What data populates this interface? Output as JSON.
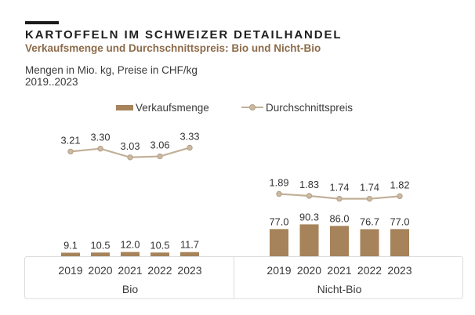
{
  "header": {
    "title": "KARTOFFELN IM SCHWEIZER DETAILHANDEL",
    "subtitle": "Verkaufsmenge und Durchschnittspreis: Bio und Nicht-Bio",
    "note_line1": "Mengen in Mio. kg, Preise in CHF/kg",
    "note_line2": "2019..2023"
  },
  "legend": {
    "bar_label": "Verkaufsmenge",
    "line_label": "Durchschnittspreis"
  },
  "colors": {
    "title": "#1e1e1e",
    "subtitle": "#8d6b4a",
    "text": "#3a3a3a",
    "bar": "#a6835a",
    "line": "#c2b098",
    "dot_fill": "#cbb9a2",
    "dot_stroke": "#b2a088",
    "axis_border": "#dcdcdc"
  },
  "chart_data": {
    "type": "bar",
    "note": "grouped bar chart with line overlay on secondary axis",
    "title": "Kartoffeln im Schweizer Detailhandel",
    "subtitle": "Verkaufsmenge und Durchschnittspreis: Bio und Nicht-Bio",
    "units": {
      "bars": "Mio. kg",
      "line": "CHF/kg"
    },
    "categories": [
      "2019",
      "2020",
      "2021",
      "2022",
      "2023"
    ],
    "series": [
      {
        "name": "Verkaufsmenge",
        "render": "bar"
      },
      {
        "name": "Durchschnittspreis",
        "render": "line"
      }
    ],
    "groups": [
      {
        "label": "Bio",
        "bars": [
          9.1,
          10.5,
          12.0,
          10.5,
          11.7
        ],
        "line": [
          3.21,
          3.3,
          3.03,
          3.06,
          3.33
        ]
      },
      {
        "label": "Nicht-Bio",
        "bars": [
          77.0,
          90.3,
          86.0,
          76.7,
          77.0
        ],
        "line": [
          1.89,
          1.83,
          1.74,
          1.74,
          1.82
        ]
      }
    ],
    "legend_position": "top",
    "grid": false,
    "value_labels": true
  }
}
